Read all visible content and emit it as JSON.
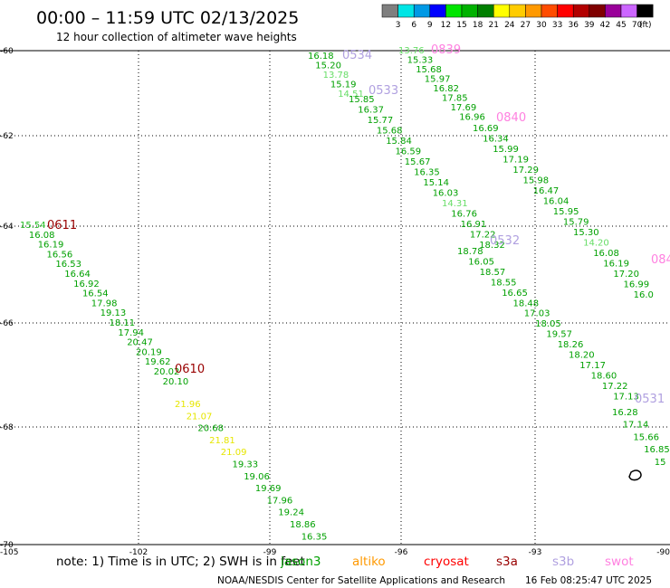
{
  "header": {
    "title": "00:00 – 11:59 UTC 02/13/2025",
    "subtitle": "12 hour collection of altimeter wave heights"
  },
  "colorbar": {
    "labels": [
      "3",
      "6",
      "9",
      "12",
      "15",
      "18",
      "21",
      "24",
      "27",
      "30",
      "33",
      "36",
      "39",
      "42",
      "45",
      "70"
    ],
    "unit": "(ft)",
    "colors": [
      "#7f7f7f",
      "#00e5e5",
      "#0099e5",
      "#0000ff",
      "#00e500",
      "#00b200",
      "#007f00",
      "#ffff00",
      "#ffcc00",
      "#ff9900",
      "#ff4c00",
      "#ff0000",
      "#b20000",
      "#7f0000",
      "#990099",
      "#cc66ff",
      "#000000"
    ]
  },
  "axes": {
    "x_labels": [
      "-105",
      "-102",
      "-99",
      "-96",
      "-93",
      "-90"
    ],
    "y_labels": [
      "-60",
      "-62",
      "-64",
      "-66",
      "-68",
      "-70"
    ]
  },
  "footer": {
    "note": "note: 1) Time is in UTC; 2) SWH is in feet",
    "credit": "NOAA/NESDIS Center for Satellite Applications and Research",
    "timestamp": "16 Feb 08:25:47 UTC 2025",
    "legend": [
      {
        "name": "jason3",
        "color": "#00a000"
      },
      {
        "name": "altiko",
        "color": "#ff9900"
      },
      {
        "name": "cryosat",
        "color": "#ff0000"
      },
      {
        "name": "s3a",
        "color": "#990000"
      },
      {
        "name": "s3b",
        "color": "#b0a0e0"
      },
      {
        "name": "swot",
        "color": "#ff80e0"
      }
    ]
  },
  "tracks": [
    {
      "time": "0611",
      "color": "#990000",
      "values": [
        [
          "15.54",
          "#22bb22"
        ],
        [
          "16.08",
          "#00a000"
        ],
        [
          "16.19",
          "#00a000"
        ],
        [
          "16.56",
          "#00a000"
        ],
        [
          "16.53",
          "#00a000"
        ],
        [
          "16.64",
          "#00a000"
        ],
        [
          "16.92",
          "#00a000"
        ],
        [
          "16.54",
          "#00a000"
        ],
        [
          "17.98",
          "#00a000"
        ],
        [
          "19.13",
          "#00a000"
        ],
        [
          "18.11",
          "#00a000"
        ],
        [
          "17.94",
          "#00a000"
        ],
        [
          "20.47",
          "#00a000"
        ],
        [
          "20.19",
          "#00a000"
        ],
        [
          "19.62",
          "#00a000"
        ],
        [
          "20.02",
          "#00a000"
        ],
        [
          "20.10",
          "#00a000"
        ]
      ]
    },
    {
      "time": "0610",
      "color": "#990000",
      "values": [
        [
          "21.96",
          "#e6e600"
        ],
        [
          "21.07",
          "#e6e600"
        ],
        [
          "20.68",
          "#00a000"
        ],
        [
          "21.81",
          "#e6e600"
        ],
        [
          "21.09",
          "#e6e600"
        ],
        [
          "19.33",
          "#00a000"
        ],
        [
          "19.06",
          "#00a000"
        ],
        [
          "19.69",
          "#00a000"
        ],
        [
          "17.96",
          "#00a000"
        ],
        [
          "19.24",
          "#00a000"
        ],
        [
          "18.86",
          "#00a000"
        ],
        [
          "16.35",
          "#00a000"
        ]
      ]
    },
    {
      "time": "0534",
      "color": "#b0a0e0",
      "values": [
        [
          "16.18",
          "#00a000"
        ],
        [
          "15.20",
          "#00a000"
        ],
        [
          "13.78",
          "#66dd66"
        ],
        [
          "15.19",
          "#00a000"
        ],
        [
          "14.51",
          "#66dd66"
        ]
      ]
    },
    {
      "time": "0533",
      "color": "#b0a0e0",
      "values": [
        [
          "15.85",
          "#00a000"
        ],
        [
          "16.37",
          "#00a000"
        ],
        [
          "15.77",
          "#00a000"
        ],
        [
          "15.68",
          "#00a000"
        ],
        [
          "15.84",
          "#00a000"
        ],
        [
          "16.59",
          "#00a000"
        ],
        [
          "15.67",
          "#00a000"
        ],
        [
          "16.35",
          "#00a000"
        ],
        [
          "15.14",
          "#00a000"
        ],
        [
          "16.03",
          "#00a000"
        ],
        [
          "14.31",
          "#66dd66"
        ],
        [
          "16.76",
          "#00a000"
        ],
        [
          "16.91",
          "#00a000"
        ],
        [
          "17.22",
          "#00a000"
        ],
        [
          "18.32",
          "#00a000"
        ]
      ]
    },
    {
      "time": "0532",
      "color": "#b0a0e0",
      "values": [
        [
          "18.78",
          "#00a000"
        ],
        [
          "16.05",
          "#00a000"
        ],
        [
          "18.57",
          "#00a000"
        ],
        [
          "18.55",
          "#00a000"
        ],
        [
          "16.65",
          "#00a000"
        ],
        [
          "18.48",
          "#00a000"
        ],
        [
          "17.03",
          "#00a000"
        ],
        [
          "18.05",
          "#00a000"
        ],
        [
          "19.57",
          "#00a000"
        ],
        [
          "18.26",
          "#00a000"
        ],
        [
          "18.20",
          "#00a000"
        ],
        [
          "17.17",
          "#00a000"
        ],
        [
          "18.60",
          "#00a000"
        ],
        [
          "17.22",
          "#00a000"
        ],
        [
          "17.13",
          "#00a000"
        ]
      ]
    },
    {
      "time": "0531",
      "color": "#b0a0e0",
      "values": [
        [
          "16.28",
          "#00a000"
        ],
        [
          "17.14",
          "#00a000"
        ],
        [
          "15.66",
          "#00a000"
        ],
        [
          "16.85",
          "#00a000"
        ],
        [
          "15",
          "#00a000"
        ]
      ]
    },
    {
      "time": "0839",
      "color": "#ff80e0",
      "values": [
        [
          "13.76",
          "#66dd66"
        ],
        [
          "15.33",
          "#00a000"
        ],
        [
          "15.68",
          "#00a000"
        ],
        [
          "15.97",
          "#00a000"
        ],
        [
          "16.82",
          "#00a000"
        ],
        [
          "17.85",
          "#00a000"
        ],
        [
          "17.69",
          "#00a000"
        ],
        [
          "16.96",
          "#00a000"
        ]
      ]
    },
    {
      "time": "0840",
      "color": "#ff80e0",
      "values": [
        [
          "16.69",
          "#00a000"
        ],
        [
          "16.34",
          "#00a000"
        ],
        [
          "15.99",
          "#00a000"
        ],
        [
          "17.19",
          "#00a000"
        ],
        [
          "17.29",
          "#00a000"
        ],
        [
          "15.98",
          "#00a000"
        ],
        [
          "16.47",
          "#00a000"
        ],
        [
          "16.04",
          "#00a000"
        ],
        [
          "15.95",
          "#00a000"
        ],
        [
          "15.79",
          "#00a000"
        ],
        [
          "15.30",
          "#00a000"
        ],
        [
          "14.20",
          "#66dd66"
        ],
        [
          "16.08",
          "#00a000"
        ],
        [
          "16.19",
          "#00a000"
        ],
        [
          "17.20",
          "#00a000"
        ],
        [
          "16.99",
          "#00a000"
        ],
        [
          "16.0",
          "#00a000"
        ]
      ]
    },
    {
      "time": "084",
      "color": "#ff80e0",
      "values": []
    }
  ]
}
